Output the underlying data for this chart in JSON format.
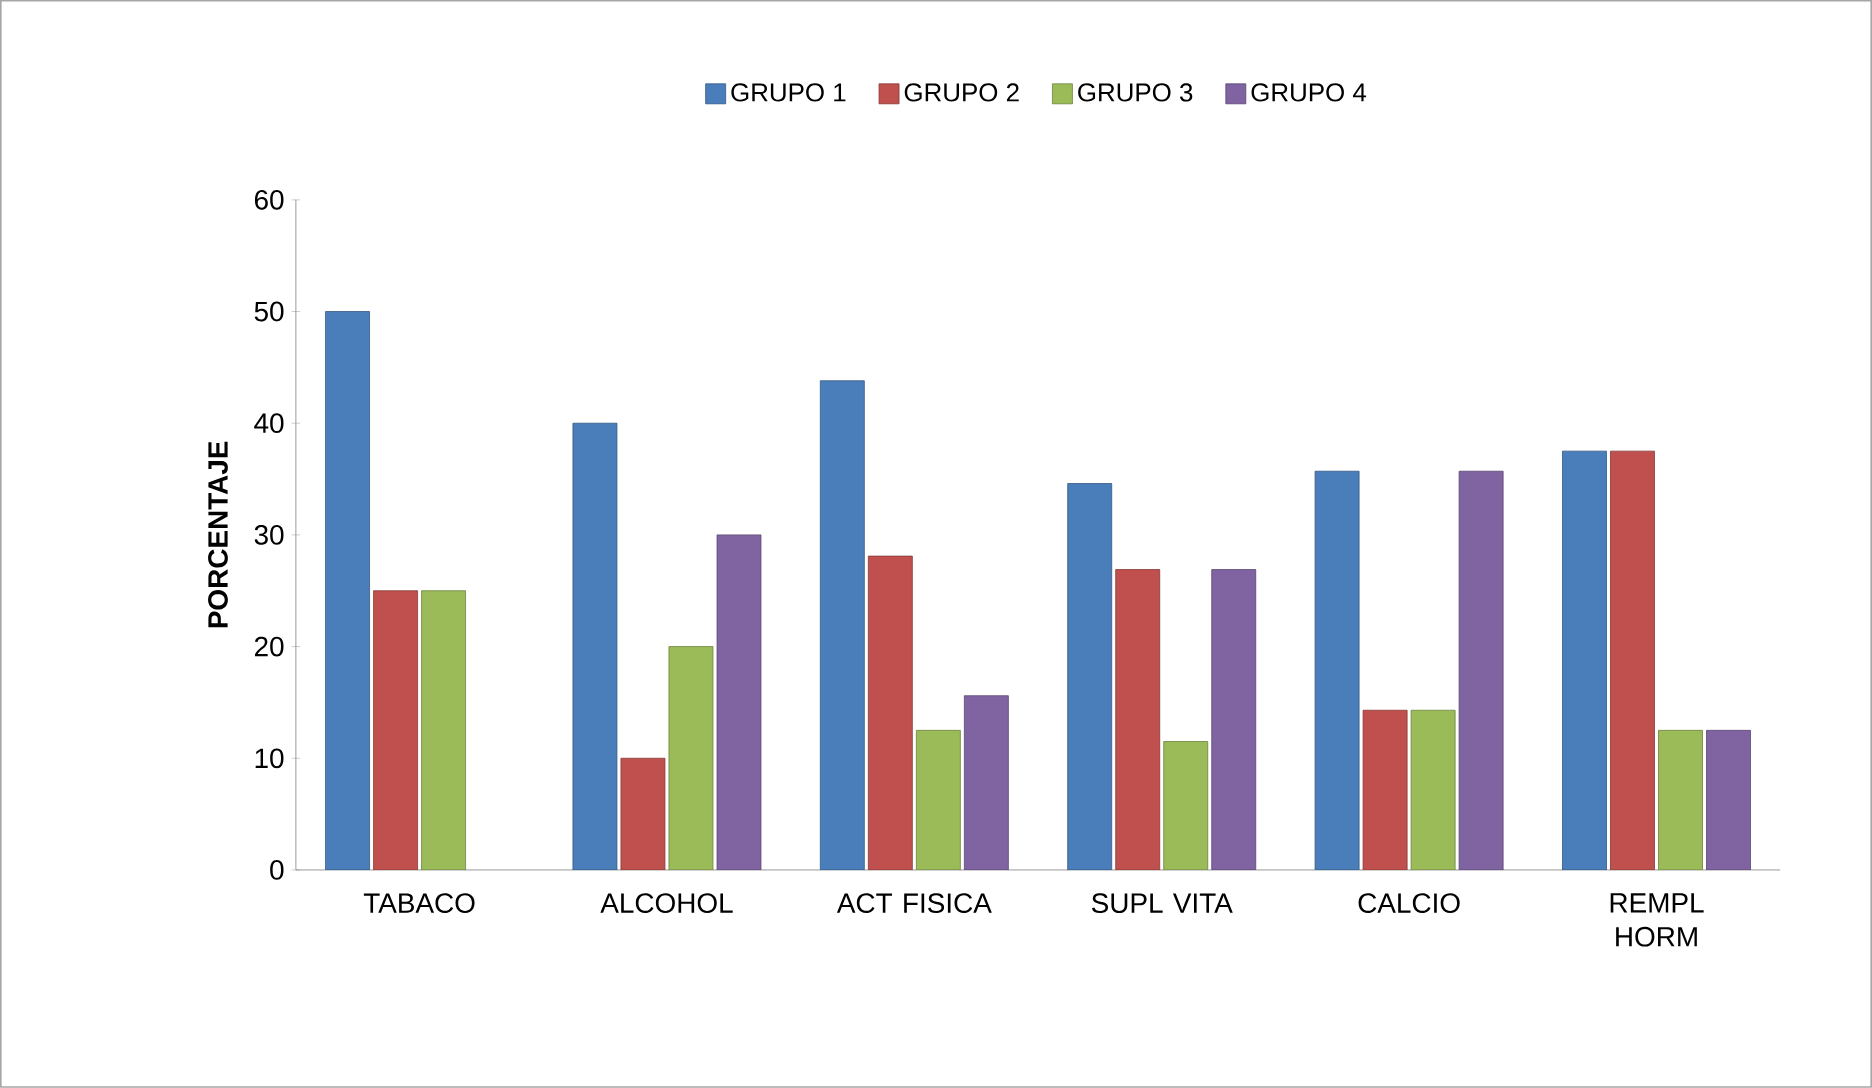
{
  "chart_data": {
    "type": "bar",
    "ylabel": "PORCENTAJE",
    "categories": [
      "TABACO",
      "ALCOHOL",
      "ACT FISICA",
      "SUPL VITA",
      "CALCIO",
      "REMPL HORM"
    ],
    "series": [
      {
        "name": "GRUPO 1",
        "color": "#4a7ebb",
        "values": [
          50,
          40,
          43.8,
          34.6,
          35.7,
          37.5
        ]
      },
      {
        "name": "GRUPO 2",
        "color": "#c0504d",
        "values": [
          25,
          10,
          28.1,
          26.9,
          14.3,
          37.5
        ]
      },
      {
        "name": "GRUPO 3",
        "color": "#9bbb59",
        "values": [
          25,
          20,
          12.5,
          11.5,
          14.3,
          12.5
        ]
      },
      {
        "name": "GRUPO 4",
        "color": "#8064a2",
        "values": [
          null,
          30,
          15.6,
          26.9,
          35.7,
          12.5
        ]
      }
    ],
    "ylim": [
      0,
      60
    ],
    "yticks": [
      0,
      10,
      20,
      30,
      40,
      50,
      60
    ],
    "legend": "top"
  }
}
